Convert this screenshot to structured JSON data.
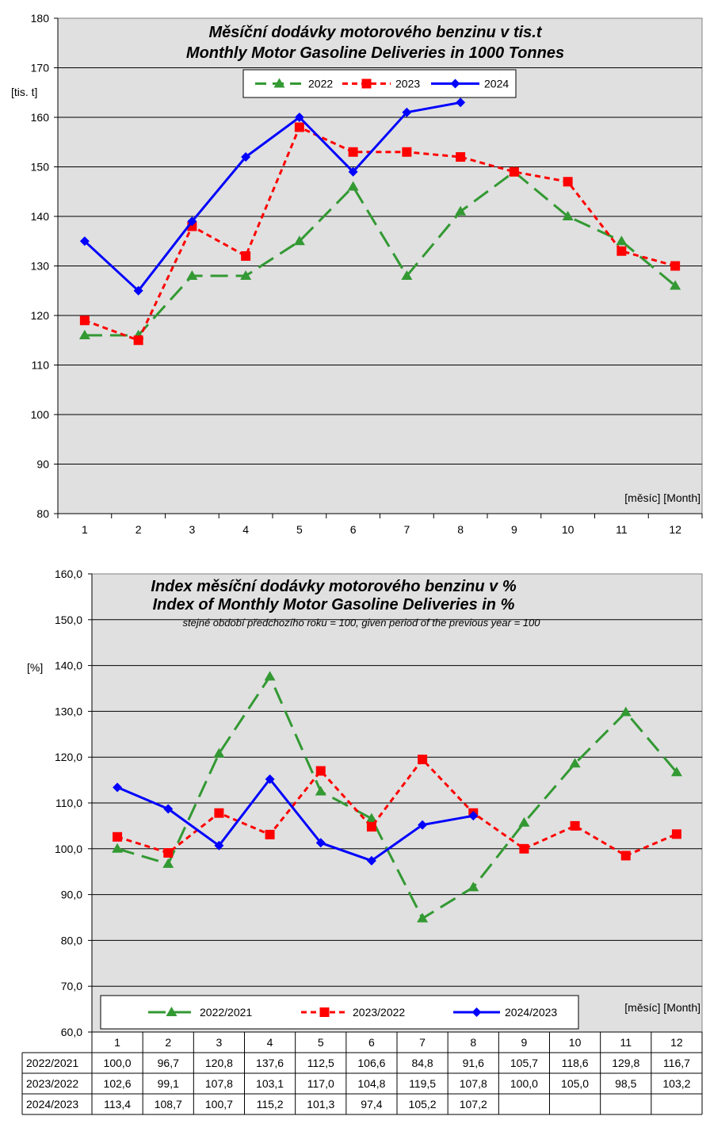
{
  "series_styles": {
    "c2022": {
      "color": "#339933",
      "dash": "22 10",
      "marker": "triangle"
    },
    "c2023": {
      "color": "#ff0000",
      "dash": "7 5",
      "marker": "square"
    },
    "c2024": {
      "color": "#0000ff",
      "dash": "",
      "marker": "diamond"
    },
    "plot_bg": "#e0e0e0"
  },
  "chart_data": [
    {
      "type": "line",
      "title": "Měsíční dodávky motorového benzinu v tis.t",
      "subtitle": "Monthly Motor Gasoline Deliveries in 1000 Tonnes",
      "ylabel": "[tis. t]",
      "xlabel": "[měsíc] [Month]",
      "ylim": [
        80,
        180
      ],
      "yticks": [
        "80",
        "90",
        "100",
        "110",
        "120",
        "130",
        "140",
        "150",
        "160",
        "170",
        "180"
      ],
      "categories": [
        "1",
        "2",
        "3",
        "4",
        "5",
        "6",
        "7",
        "8",
        "9",
        "10",
        "11",
        "12"
      ],
      "grid": true,
      "legend": "top-center",
      "series": [
        {
          "name": "2022",
          "style": "c2022",
          "values": [
            116,
            116,
            128,
            128,
            135,
            146,
            128,
            141,
            149,
            140,
            135,
            126
          ]
        },
        {
          "name": "2023",
          "style": "c2023",
          "values": [
            119,
            115,
            138,
            132,
            158,
            153,
            153,
            152,
            149,
            147,
            133,
            130
          ]
        },
        {
          "name": "2024",
          "style": "c2024",
          "values": [
            135,
            125,
            139,
            152,
            160,
            149,
            161,
            163,
            null,
            null,
            null,
            null
          ]
        }
      ]
    },
    {
      "type": "line",
      "title": "Index měsíční dodávky motorového benzinu v %",
      "subtitle": "Index of Monthly Motor Gasoline Deliveries in %",
      "note": "stejné období předchozího roku = 100, given period of the previous year = 100",
      "ylabel": "[%]",
      "xlabel": "[měsíc] [Month]",
      "ylim": [
        60,
        160
      ],
      "yticks": [
        "60,0",
        "70,0",
        "80,0",
        "90,0",
        "100,0",
        "110,0",
        "120,0",
        "130,0",
        "140,0",
        "150,0",
        "160,0"
      ],
      "categories": [
        "1",
        "2",
        "3",
        "4",
        "5",
        "6",
        "7",
        "8",
        "9",
        "10",
        "11",
        "12"
      ],
      "grid": true,
      "legend": "bottom",
      "series": [
        {
          "name": "2022/2021",
          "style": "c2022",
          "values": [
            100.0,
            96.7,
            120.8,
            137.6,
            112.5,
            106.6,
            84.8,
            91.6,
            105.7,
            118.6,
            129.8,
            116.7
          ]
        },
        {
          "name": "2023/2022",
          "style": "c2023",
          "values": [
            102.6,
            99.1,
            107.8,
            103.1,
            117.0,
            104.8,
            119.5,
            107.8,
            100.0,
            105.0,
            98.5,
            103.2
          ]
        },
        {
          "name": "2024/2023",
          "style": "c2024",
          "values": [
            113.4,
            108.7,
            100.7,
            115.2,
            101.3,
            97.4,
            105.2,
            107.2,
            null,
            null,
            null,
            null
          ]
        }
      ],
      "table": {
        "rows": [
          {
            "label": "2022/2021",
            "cells": [
              "100,0",
              "96,7",
              "120,8",
              "137,6",
              "112,5",
              "106,6",
              "84,8",
              "91,6",
              "105,7",
              "118,6",
              "129,8",
              "116,7"
            ]
          },
          {
            "label": "2023/2022",
            "cells": [
              "102,6",
              "99,1",
              "107,8",
              "103,1",
              "117,0",
              "104,8",
              "119,5",
              "107,8",
              "100,0",
              "105,0",
              "98,5",
              "103,2"
            ]
          },
          {
            "label": "2024/2023",
            "cells": [
              "113,4",
              "108,7",
              "100,7",
              "115,2",
              "101,3",
              "97,4",
              "105,2",
              "107,2",
              "",
              "",
              "",
              ""
            ]
          }
        ]
      }
    }
  ]
}
